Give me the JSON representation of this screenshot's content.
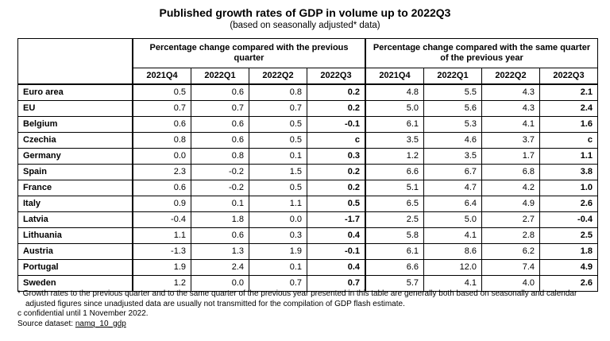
{
  "title": "Published growth rates of GDP in volume up to 2022Q3",
  "subtitle": "(based on seasonally adjusted* data)",
  "table": {
    "group_headers": [
      "Percentage change compared with the previous quarter",
      "Percentage change compared with the same quarter of the previous year"
    ],
    "quarters": [
      "2021Q4",
      "2022Q1",
      "2022Q2",
      "2022Q3",
      "2021Q4",
      "2022Q1",
      "2022Q2",
      "2022Q3"
    ],
    "rows": [
      {
        "country": "Euro area",
        "values": [
          "0.5",
          "0.6",
          "0.8",
          "0.2",
          "4.8",
          "5.5",
          "4.3",
          "2.1"
        ]
      },
      {
        "country": "EU",
        "values": [
          "0.7",
          "0.7",
          "0.7",
          "0.2",
          "5.0",
          "5.6",
          "4.3",
          "2.4"
        ]
      },
      {
        "country": "Belgium",
        "values": [
          "0.6",
          "0.6",
          "0.5",
          "-0.1",
          "6.1",
          "5.3",
          "4.1",
          "1.6"
        ]
      },
      {
        "country": "Czechia",
        "values": [
          "0.8",
          "0.6",
          "0.5",
          "c",
          "3.5",
          "4.6",
          "3.7",
          "c"
        ]
      },
      {
        "country": "Germany",
        "values": [
          "0.0",
          "0.8",
          "0.1",
          "0.3",
          "1.2",
          "3.5",
          "1.7",
          "1.1"
        ]
      },
      {
        "country": "Spain",
        "values": [
          "2.3",
          "-0.2",
          "1.5",
          "0.2",
          "6.6",
          "6.7",
          "6.8",
          "3.8"
        ]
      },
      {
        "country": "France",
        "values": [
          "0.6",
          "-0.2",
          "0.5",
          "0.2",
          "5.1",
          "4.7",
          "4.2",
          "1.0"
        ]
      },
      {
        "country": "Italy",
        "values": [
          "0.9",
          "0.1",
          "1.1",
          "0.5",
          "6.5",
          "6.4",
          "4.9",
          "2.6"
        ]
      },
      {
        "country": "Latvia",
        "values": [
          "-0.4",
          "1.8",
          "0.0",
          "-1.7",
          "2.5",
          "5.0",
          "2.7",
          "-0.4"
        ]
      },
      {
        "country": "Lithuania",
        "values": [
          "1.1",
          "0.6",
          "0.3",
          "0.4",
          "5.8",
          "4.1",
          "2.8",
          "2.5"
        ]
      },
      {
        "country": "Austria",
        "values": [
          "-1.3",
          "1.3",
          "1.9",
          "-0.1",
          "6.1",
          "8.6",
          "6.2",
          "1.8"
        ]
      },
      {
        "country": "Portugal",
        "values": [
          "1.9",
          "2.4",
          "0.1",
          "0.4",
          "6.6",
          "12.0",
          "7.4",
          "4.9"
        ]
      },
      {
        "country": "Sweden",
        "values": [
          "1.2",
          "0.0",
          "0.7",
          "0.7",
          "5.7",
          "4.1",
          "4.0",
          "2.6"
        ]
      }
    ]
  },
  "notes": {
    "footnote": "* Growth rates to the previous quarter and to the same quarter of the previous year presented in this table are generally both based on seasonally and calendar adjusted figures since unadjusted data are usually not transmitted for the compilation of GDP flash estimate.",
    "confidential": "c confidential until 1 November 2022.",
    "source_label": "Source dataset: ",
    "source_link": "namq_10_gdp"
  }
}
